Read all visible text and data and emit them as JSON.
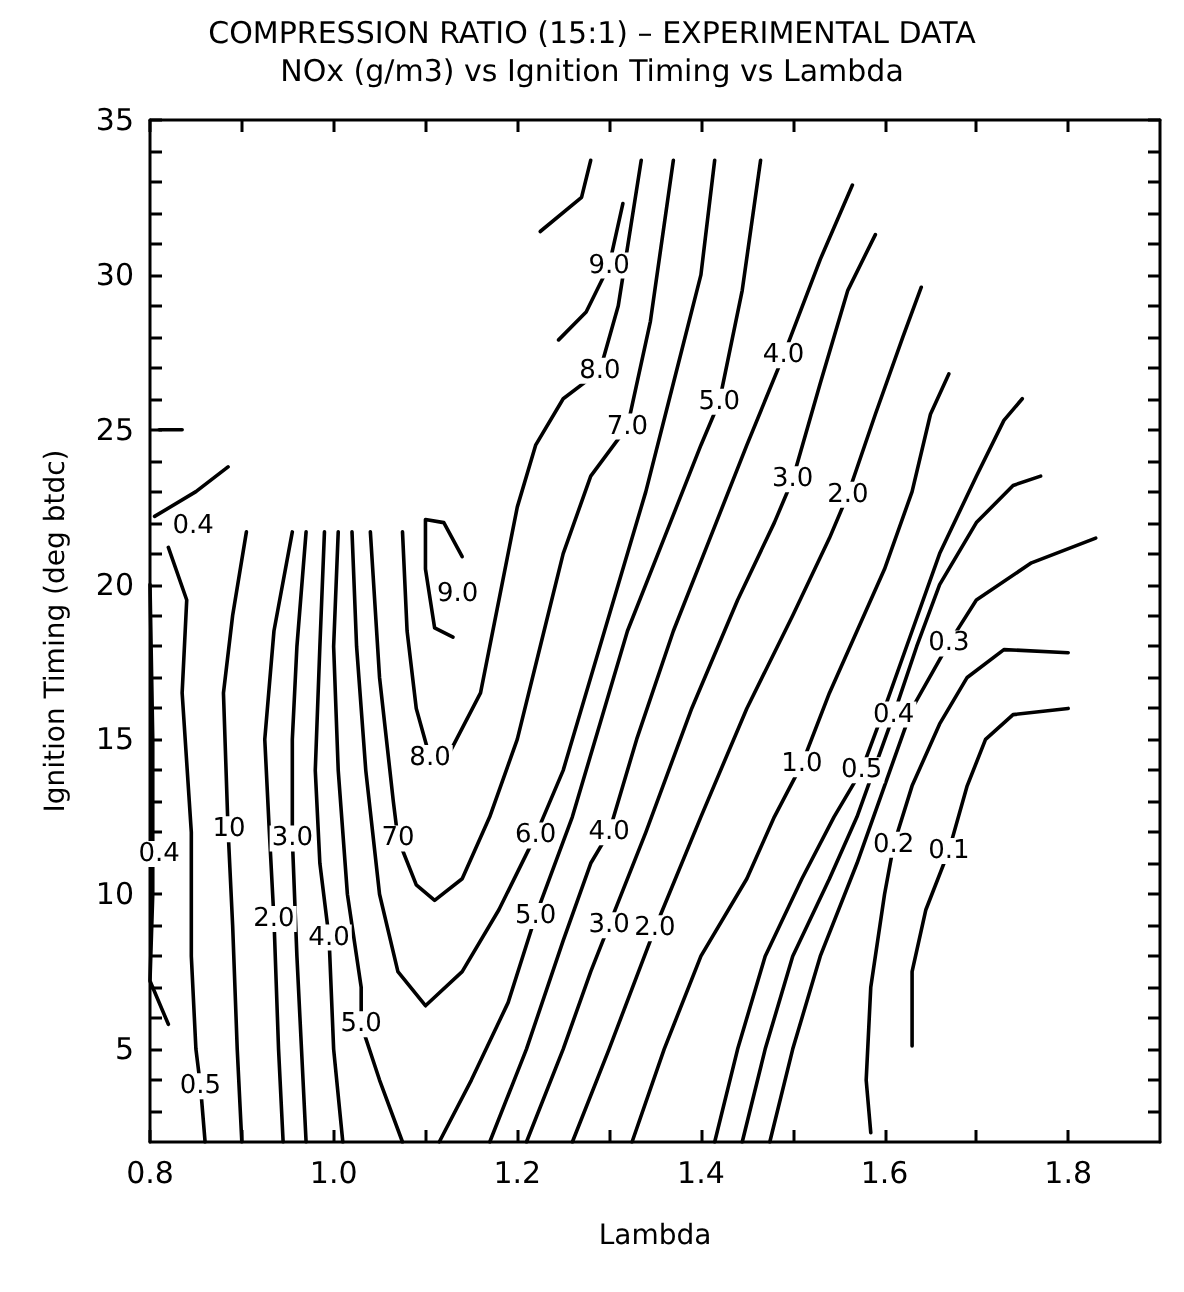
{
  "chart_data": {
    "type": "line",
    "title": "COMPRESSION RATIO (15:1) – EXPERIMENTAL DATA",
    "subtitle": "NOx (g/m3) vs Ignition Timing vs Lambda",
    "xlabel": "Lambda",
    "ylabel": "Ignition Timing (deg btdc)",
    "xlim": [
      0.8,
      1.9
    ],
    "ylim": [
      2,
      35
    ],
    "xticks": [
      0.8,
      {
        "value": 0.9,
        "label": null
      },
      {
        "value": 1,
        "label": "1.0"
      },
      {
        "value": 1.1,
        "label": null
      },
      1.2,
      {
        "value": 1.3,
        "label": null
      },
      1.4,
      {
        "value": 1.5,
        "label": null
      },
      1.6,
      {
        "value": 1.7,
        "label": null
      },
      1.8
    ],
    "yticks": [
      {
        "value": 3,
        "label": null
      },
      {
        "value": 4,
        "label": null
      },
      5,
      {
        "value": 6,
        "label": null
      },
      {
        "value": 7,
        "label": null
      },
      {
        "value": 8,
        "label": null
      },
      {
        "value": 9,
        "label": null
      },
      10,
      {
        "value": 11,
        "label": null
      },
      {
        "value": 12,
        "label": null
      },
      {
        "value": 13,
        "label": null
      },
      {
        "value": 14,
        "label": null
      },
      15,
      {
        "value": 16,
        "label": null
      },
      {
        "value": 17,
        "label": null
      },
      {
        "value": 18,
        "label": null
      },
      {
        "value": 19,
        "label": null
      },
      20,
      {
        "value": 21,
        "label": null
      },
      {
        "value": 22,
        "label": null
      },
      {
        "value": 23,
        "label": null
      },
      {
        "value": 24,
        "label": null
      },
      25,
      {
        "value": 26,
        "label": null
      },
      {
        "value": 27,
        "label": null
      },
      {
        "value": 28,
        "label": null
      },
      {
        "value": 29,
        "label": null
      },
      30,
      {
        "value": 31,
        "label": null
      },
      {
        "value": 32,
        "label": null
      },
      {
        "value": 33,
        "label": null
      },
      {
        "value": 34,
        "label": null
      },
      35
    ],
    "marker": "none",
    "line_style": "solid",
    "series": [
      {
        "color": "#000000",
        "x": [
          0.805,
          0.85,
          0.885
        ],
        "values": [
          22.2,
          23.0,
          23.8
        ]
      },
      {
        "color": "#000000",
        "x": [
          0.81,
          0.835
        ],
        "values": [
          25,
          25
        ]
      },
      {
        "color": "#000000",
        "x": [
          0.8,
          0.803,
          0.803,
          0.8,
          0.82
        ],
        "values": [
          20.0,
          15,
          10,
          7.2,
          5.8
        ]
      },
      {
        "color": "#000000",
        "x": [
          0.82,
          0.84,
          0.835,
          0.845,
          0.845,
          0.85,
          0.855,
          0.86
        ],
        "values": [
          21.2,
          19.5,
          16.5,
          12,
          8,
          5,
          3.8,
          2
        ]
      },
      {
        "color": "#000000",
        "x": [
          0.905,
          0.89,
          0.88,
          0.885,
          0.89,
          0.895,
          0.9
        ],
        "values": [
          21.7,
          19,
          16.5,
          12.1,
          9,
          5,
          2
        ]
      },
      {
        "color": "#000000",
        "x": [
          0.955,
          0.935,
          0.925,
          0.93,
          0.935,
          0.94,
          0.945
        ],
        "values": [
          21.7,
          18.5,
          15,
          12,
          9.2,
          5,
          2
        ]
      },
      {
        "color": "#000000",
        "x": [
          0.97,
          0.96,
          0.955,
          0.955,
          0.96,
          0.97
        ],
        "values": [
          21.7,
          18,
          15,
          11.8,
          8,
          2
        ]
      },
      {
        "color": "#000000",
        "x": [
          0.99,
          0.985,
          0.98,
          0.985,
          0.995,
          1.0,
          1.01
        ],
        "values": [
          21.7,
          18,
          14,
          11,
          8.6,
          5,
          2
        ]
      },
      {
        "color": "#000000",
        "x": [
          1.005,
          1.0,
          1.005,
          1.015,
          1.03,
          1.03,
          1.05,
          1.075
        ],
        "values": [
          21.7,
          18,
          14,
          10,
          7,
          5.8,
          4,
          2
        ]
      },
      {
        "color": "#000000",
        "x": [
          1.02,
          1.025,
          1.035,
          1.05,
          1.07,
          1.1,
          1.14,
          1.18,
          1.22,
          1.25,
          1.28,
          1.31,
          1.34,
          1.37,
          1.4,
          1.415
        ],
        "values": [
          21.7,
          18,
          14,
          10,
          7.5,
          6.4,
          7.5,
          9.5,
          11.9,
          14,
          17,
          20,
          23,
          26.5,
          30,
          33.7
        ]
      },
      {
        "color": "#000000",
        "x": [
          1.04,
          1.05,
          1.065,
          1.07,
          1.09,
          1.11,
          1.14,
          1.17,
          1.2,
          1.225,
          1.25,
          1.28,
          1.32,
          1.345,
          1.37
        ],
        "values": [
          21.7,
          17,
          13,
          11.8,
          10.3,
          9.8,
          10.5,
          12.5,
          15,
          18,
          21,
          23.5,
          25.1,
          28.5,
          33.7
        ]
      },
      {
        "color": "#000000",
        "x": [
          1.075,
          1.08,
          1.09,
          1.105,
          1.125,
          1.16,
          1.18,
          1.2,
          1.22,
          1.25,
          1.29,
          1.31,
          1.335
        ],
        "values": [
          21.7,
          18.5,
          16,
          14.4,
          14.5,
          16.5,
          19.5,
          22.5,
          24.5,
          26,
          26.9,
          29,
          33.7
        ]
      },
      {
        "color": "#000000",
        "x": [
          1.13,
          1.11,
          1.1,
          1.1,
          1.12,
          1.14
        ],
        "values": [
          18.3,
          18.6,
          20.5,
          22.1,
          22.0,
          20.9
        ]
      },
      {
        "color": "#000000",
        "x": [
          1.315,
          1.3,
          1.275,
          1.245
        ],
        "values": [
          32.3,
          30.3,
          28.8,
          27.9
        ]
      },
      {
        "color": "#000000",
        "x": [
          1.28,
          1.27,
          1.225
        ],
        "values": [
          33.7,
          32.5,
          31.4
        ]
      },
      {
        "color": "#000000",
        "x": [
          1.115,
          1.15,
          1.19,
          1.22,
          1.26,
          1.29,
          1.32,
          1.36,
          1.4,
          1.42,
          1.445,
          1.465
        ],
        "values": [
          2,
          4,
          6.5,
          9.3,
          12.5,
          15.5,
          18.5,
          21.5,
          24.5,
          25.9,
          29.5,
          33.7
        ]
      },
      {
        "color": "#000000",
        "x": [
          1.17,
          1.21,
          1.25,
          1.28,
          1.3,
          1.33,
          1.37,
          1.41,
          1.45,
          1.49,
          1.53,
          1.565
        ],
        "values": [
          2,
          5,
          8.5,
          11,
          12,
          15,
          18.5,
          21.5,
          24.5,
          27.4,
          30.5,
          32.9
        ]
      },
      {
        "color": "#000000",
        "x": [
          1.21,
          1.25,
          1.28,
          1.3,
          1.34,
          1.39,
          1.44,
          1.48,
          1.5,
          1.53,
          1.56,
          1.59
        ],
        "values": [
          2,
          5,
          7.5,
          9,
          12,
          16,
          19.5,
          22,
          23.4,
          26.5,
          29.5,
          31.3
        ]
      },
      {
        "color": "#000000",
        "x": [
          1.26,
          1.3,
          1.35,
          1.4,
          1.45,
          1.5,
          1.54,
          1.56,
          1.59,
          1.62,
          1.64
        ],
        "values": [
          2,
          5,
          8.9,
          12.5,
          16,
          19,
          21.5,
          22.9,
          25.5,
          28,
          29.6
        ]
      },
      {
        "color": "#000000",
        "x": [
          1.325,
          1.36,
          1.4,
          1.45,
          1.48,
          1.51,
          1.54,
          1.57,
          1.6,
          1.63,
          1.65,
          1.67
        ],
        "values": [
          2,
          5,
          8,
          10.5,
          12.5,
          14.2,
          16.5,
          18.5,
          20.5,
          23,
          25.5,
          26.8
        ]
      },
      {
        "color": "#000000",
        "x": [
          1.415,
          1.44,
          1.47,
          1.51,
          1.545,
          1.575,
          1.6,
          1.63,
          1.66,
          1.7,
          1.73,
          1.75
        ],
        "values": [
          2,
          5,
          8,
          10.5,
          12.5,
          14,
          16,
          18.5,
          21,
          23.5,
          25.3,
          26
        ]
      },
      {
        "color": "#000000",
        "x": [
          1.445,
          1.47,
          1.5,
          1.54,
          1.57,
          1.61,
          1.635,
          1.66,
          1.7,
          1.74,
          1.77
        ],
        "values": [
          2,
          5,
          8,
          10.5,
          12.5,
          15.8,
          18,
          20,
          22,
          23.2,
          23.5
        ]
      },
      {
        "color": "#000000",
        "x": [
          1.475,
          1.5,
          1.53,
          1.57,
          1.6,
          1.63,
          1.67,
          1.7,
          1.76,
          1.83
        ],
        "values": [
          2,
          5,
          8,
          11,
          13.5,
          16,
          18.1,
          19.5,
          20.7,
          21.5
        ]
      },
      {
        "color": "#000000",
        "x": [
          1.585,
          1.58,
          1.585,
          1.6,
          1.61,
          1.63,
          1.66,
          1.69,
          1.73,
          1.8
        ],
        "values": [
          2.3,
          4,
          7,
          10,
          11.6,
          13.5,
          15.5,
          17,
          17.9,
          17.8
        ]
      },
      {
        "color": "#000000",
        "x": [
          1.63,
          1.63,
          1.645,
          1.67,
          1.69,
          1.71,
          1.74,
          1.8
        ],
        "values": [
          5.1,
          7.5,
          9.5,
          11.4,
          13.5,
          15,
          15.8,
          16
        ]
      }
    ],
    "annotations": [
      {
        "text": "0.4",
        "x": 0.847,
        "y": 21.9
      },
      {
        "text": "0.4",
        "x": 0.81,
        "y": 11.3
      },
      {
        "text": "0.5",
        "x": 0.855,
        "y": 3.8
      },
      {
        "text": "10",
        "x": 0.886,
        "y": 12.1
      },
      {
        "text": "2.0",
        "x": 0.935,
        "y": 9.2
      },
      {
        "text": "3.0",
        "x": 0.955,
        "y": 11.8
      },
      {
        "text": "4.0",
        "x": 0.995,
        "y": 8.6
      },
      {
        "text": "5.0",
        "x": 1.03,
        "y": 5.8
      },
      {
        "text": "70",
        "x": 1.07,
        "y": 11.8
      },
      {
        "text": "8.0",
        "x": 1.105,
        "y": 14.4
      },
      {
        "text": "9.0",
        "x": 1.135,
        "y": 19.7
      },
      {
        "text": "6.0",
        "x": 1.22,
        "y": 11.9
      },
      {
        "text": "5.0",
        "x": 1.22,
        "y": 9.3
      },
      {
        "text": "4.0",
        "x": 1.3,
        "y": 12
      },
      {
        "text": "3.0",
        "x": 1.3,
        "y": 9
      },
      {
        "text": "2.0",
        "x": 1.35,
        "y": 8.9
      },
      {
        "text": "1.0",
        "x": 1.51,
        "y": 14.2
      },
      {
        "text": "0.5",
        "x": 1.575,
        "y": 14
      },
      {
        "text": "0.4",
        "x": 1.61,
        "y": 15.8
      },
      {
        "text": "0.3",
        "x": 1.67,
        "y": 18.1
      },
      {
        "text": "0.2",
        "x": 1.61,
        "y": 11.6
      },
      {
        "text": "0.1",
        "x": 1.67,
        "y": 11.4
      },
      {
        "text": "9.0",
        "x": 1.3,
        "y": 30.3
      },
      {
        "text": "8.0",
        "x": 1.29,
        "y": 26.9
      },
      {
        "text": "7.0",
        "x": 1.32,
        "y": 25.1
      },
      {
        "text": "5.0",
        "x": 1.42,
        "y": 25.9
      },
      {
        "text": "4.0",
        "x": 1.49,
        "y": 27.4
      },
      {
        "text": "3.0",
        "x": 1.5,
        "y": 23.4
      },
      {
        "text": "2.0",
        "x": 1.56,
        "y": 22.9
      }
    ]
  }
}
